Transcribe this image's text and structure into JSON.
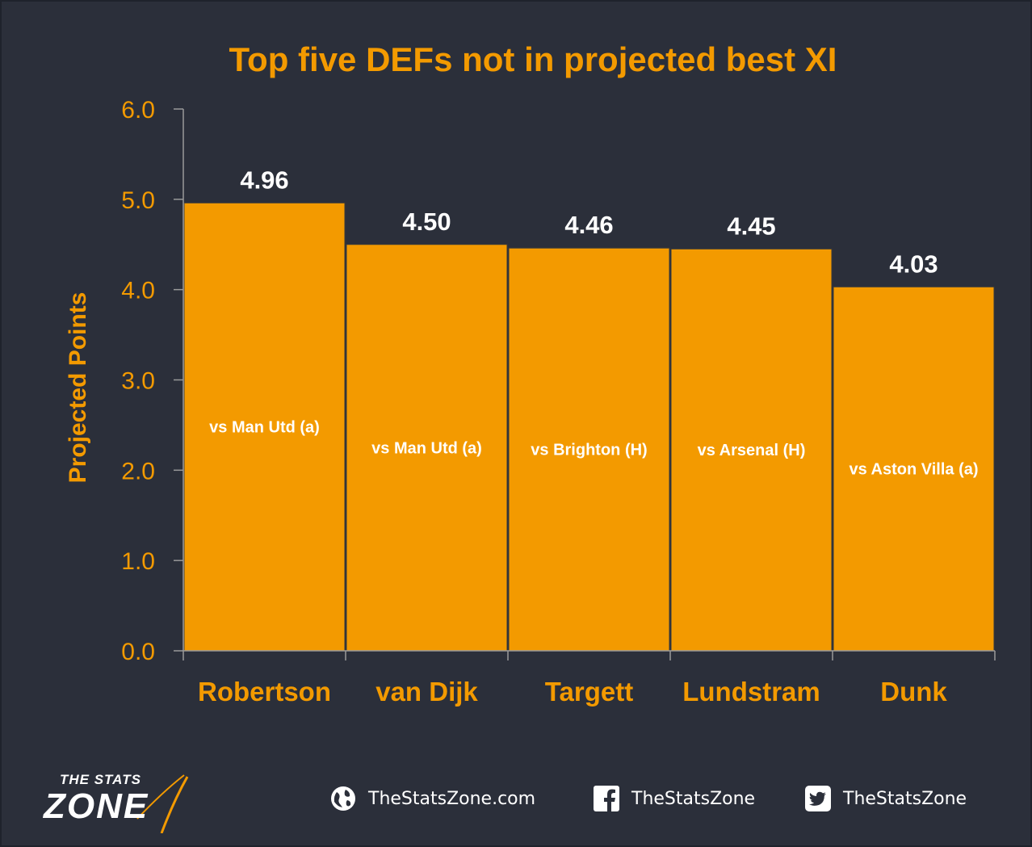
{
  "chart_data": {
    "type": "bar",
    "title": "Top five DEFs not in projected best XI",
    "xlabel": "",
    "ylabel": "Projected Points",
    "ylim": [
      0,
      6
    ],
    "yticks": [
      "0.0",
      "1.0",
      "2.0",
      "3.0",
      "4.0",
      "5.0",
      "6.0"
    ],
    "categories": [
      "Robertson",
      "van Dijk",
      "Targett",
      "Lundstram",
      "Dunk"
    ],
    "values": [
      4.96,
      4.5,
      4.46,
      4.45,
      4.03
    ],
    "value_labels": [
      "4.96",
      "4.50",
      "4.46",
      "4.45",
      "4.03"
    ],
    "fixtures": [
      "vs Man Utd (a)",
      "vs Man Utd (a)",
      "vs Brighton (H)",
      "vs Arsenal (H)",
      "vs Aston Villa (a)"
    ],
    "bar_color": "#f39a00",
    "grid": false,
    "legend": "none"
  },
  "footer": {
    "logo_top": "THE STATS",
    "logo_main": "ZONE",
    "website": "TheStatsZone.com",
    "facebook": "TheStatsZone",
    "twitter": "TheStatsZone"
  },
  "colors": {
    "background": "#2b2f3a",
    "accent": "#f39a00",
    "text_light": "#ffffff"
  },
  "icons": [
    "globe-icon",
    "facebook-icon",
    "twitter-icon"
  ]
}
